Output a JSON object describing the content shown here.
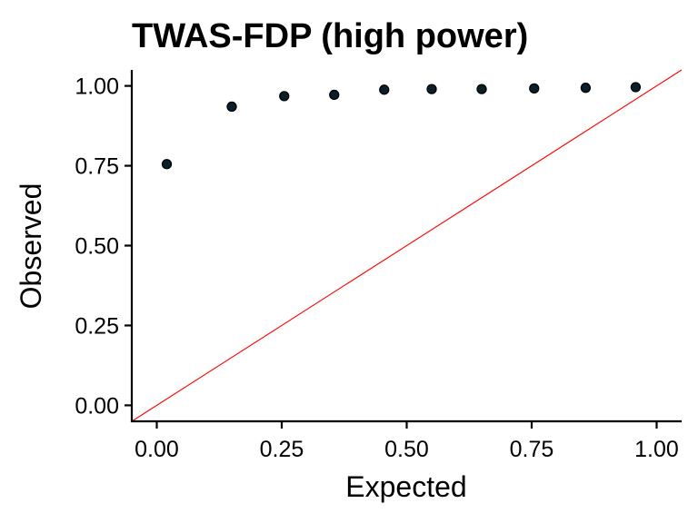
{
  "chart_data": {
    "type": "scatter",
    "title": "TWAS-FDP (high power)",
    "xlabel": "Expected",
    "ylabel": "Observed",
    "xlim": [
      -0.05,
      1.05
    ],
    "ylim": [
      -0.05,
      1.05
    ],
    "xticks": [
      "0.00",
      "0.25",
      "0.50",
      "0.75",
      "1.00"
    ],
    "yticks": [
      "0.00",
      "0.25",
      "0.50",
      "0.75",
      "1.00"
    ],
    "grid": false,
    "legend": "none",
    "reference_line": {
      "slope": 1,
      "intercept": 0,
      "color": "#ff0000"
    },
    "point_color": "#0b1f2a",
    "points": [
      {
        "x": 0.02,
        "y": 0.755
      },
      {
        "x": 0.15,
        "y": 0.935
      },
      {
        "x": 0.255,
        "y": 0.968
      },
      {
        "x": 0.355,
        "y": 0.972
      },
      {
        "x": 0.455,
        "y": 0.988
      },
      {
        "x": 0.55,
        "y": 0.99
      },
      {
        "x": 0.65,
        "y": 0.99
      },
      {
        "x": 0.755,
        "y": 0.992
      },
      {
        "x": 0.858,
        "y": 0.994
      },
      {
        "x": 0.958,
        "y": 0.996
      }
    ]
  }
}
